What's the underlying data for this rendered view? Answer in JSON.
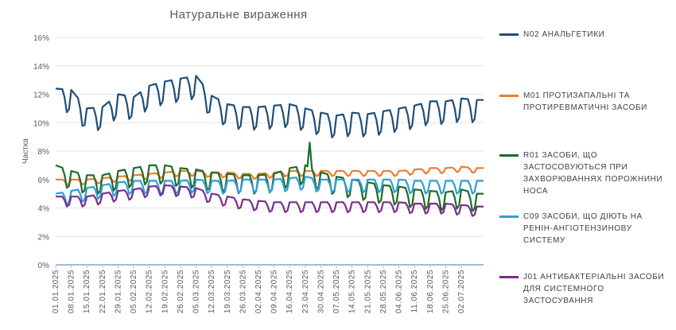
{
  "chart_data": {
    "type": "line",
    "title": "Натуральне  вираження",
    "ylabel": "Частка",
    "xlabel": "",
    "ylim": [
      0,
      16
    ],
    "yticks": [
      "0%",
      "2%",
      "4%",
      "6%",
      "8%",
      "10%",
      "12%",
      "14%",
      "16%"
    ],
    "xticks": [
      "01.01.2025",
      "08.01.2025",
      "15.01.2025",
      "22.01.2025",
      "29.01.2025",
      "05.02.2025",
      "12.02.2025",
      "19.02.2025",
      "26.02.2025",
      "05.03.2025",
      "12.03.2025",
      "19.03.2025",
      "26.03.2025",
      "02.04.2025",
      "09.04.2025",
      "16.04.2025",
      "23.04.2025",
      "30.04.2025",
      "07.05.2025",
      "14.05.2025",
      "21.05.2025",
      "28.05.2025",
      "04.06.2025",
      "11.06.2025",
      "18.06.2025",
      "25.06.2025",
      "02.07.2025"
    ],
    "days": 193,
    "grid": true,
    "legend_position": "right",
    "series": [
      {
        "name": "N02  АНАЛЬГЕТИКИ",
        "color": "#1f4e79",
        "weekly": [
          12.4,
          12.3,
          11.0,
          11.1,
          12.0,
          11.8,
          12.6,
          12.9,
          13.1,
          13.3,
          11.9,
          11.3,
          11.1,
          11.1,
          11.2,
          11.3,
          11.0,
          10.7,
          10.5,
          10.7,
          10.6,
          10.8,
          11.0,
          11.2,
          11.5,
          11.5,
          11.7,
          11.6
        ],
        "trough_offset": 1.6
      },
      {
        "name": "M01  ПРОТИЗАПАЛЬНІ  ТА ПРОТИРЕВМАТИЧНІ  ЗАСОБИ",
        "color": "#ed7d31",
        "weekly": [
          6.0,
          6.0,
          6.0,
          6.1,
          6.2,
          6.3,
          6.4,
          6.5,
          6.6,
          6.6,
          6.5,
          6.5,
          6.4,
          6.4,
          6.5,
          6.6,
          6.6,
          6.6,
          6.6,
          6.6,
          6.6,
          6.6,
          6.6,
          6.7,
          6.8,
          6.8,
          6.9,
          6.8
        ],
        "trough_offset": 0.35
      },
      {
        "name": "R01  ЗАСОБИ,  ЩО  ЗАСТОСОВУЮТЬСЯ ПРИ  ЗАХВОРЮВАННЯХ  ПОРОЖНИНИ НОСА",
        "color": "#1e6b2a",
        "weekly": [
          7.0,
          6.6,
          6.3,
          6.3,
          6.6,
          6.8,
          7.0,
          7.0,
          6.8,
          6.7,
          6.5,
          6.4,
          6.3,
          6.3,
          6.4,
          6.8,
          7.0,
          6.5,
          6.2,
          6.0,
          5.8,
          5.6,
          5.5,
          5.3,
          5.2,
          5.1,
          5.3,
          5.0
        ],
        "trough_offset": 1.3
      },
      {
        "name": "C09  ЗАСОБИ,  ЩО  ДІЮТЬ  НА  РЕНІН-АНГІОТЕНЗИНОВУ  СИСТЕМУ",
        "color": "#2e9fd6",
        "weekly": [
          5.0,
          5.2,
          5.4,
          5.6,
          5.8,
          5.9,
          5.9,
          5.9,
          5.9,
          6.0,
          5.9,
          5.9,
          6.0,
          6.0,
          6.0,
          6.1,
          6.2,
          6.0,
          6.0,
          6.0,
          6.0,
          6.0,
          6.0,
          5.9,
          5.9,
          5.9,
          5.9,
          5.9
        ],
        "trough_offset": 0.9
      },
      {
        "name": "J01  АНТИБАКТЕРІАЛЬНІ  ЗАСОБИ  ДЛЯ СИСТЕМНОГО  ЗАСТОСУВАННЯ",
        "color": "#7b2c8e",
        "weekly": [
          4.8,
          4.8,
          4.8,
          5.0,
          5.2,
          5.3,
          5.5,
          5.6,
          5.5,
          5.4,
          5.0,
          4.8,
          4.6,
          4.5,
          4.4,
          4.4,
          4.4,
          4.4,
          4.4,
          4.4,
          4.4,
          4.4,
          4.4,
          4.3,
          4.3,
          4.3,
          4.2,
          4.1
        ],
        "trough_offset": 0.7
      }
    ],
    "spikes": [
      {
        "series": 2,
        "day": 114,
        "value": 8.6
      }
    ]
  }
}
